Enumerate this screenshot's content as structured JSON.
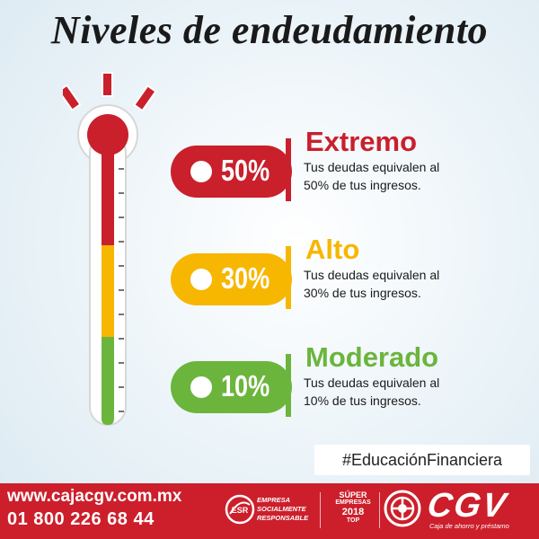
{
  "title": "Niveles de endeudamiento",
  "levels": [
    {
      "name": "Extremo",
      "percent": "50%",
      "desc_line1": "Tus deudas equivalen al",
      "desc_line2": "50% de tus ingresos.",
      "color": "#c9202c"
    },
    {
      "name": "Alto",
      "percent": "30%",
      "desc_line1": "Tus deudas equivalen al",
      "desc_line2": "30% de tus ingresos.",
      "color": "#f7b600"
    },
    {
      "name": "Moderado",
      "percent": "10%",
      "desc_line1": "Tus deudas equivalen al",
      "desc_line2": "10% de tus ingresos.",
      "color": "#6bb53d"
    }
  ],
  "hashtag": "#EducaciónFinanciera",
  "footer": {
    "website": "www.cajacgv.com.mx",
    "phone": "01 800 226 68 44",
    "esr_badge": "ESR",
    "esr_line1": "EMPRESA",
    "esr_line2": "SOCIALMENTE",
    "esr_line3": "RESPONSABLE",
    "super_line1": "SÚPER",
    "super_line2": "EMPRESAS",
    "super_year": "2018",
    "super_line3": "TOP",
    "brand": "CGV",
    "brand_tagline": "Caja de ahorro y préstamo"
  },
  "colors": {
    "red": "#c9202c",
    "yellow": "#f7b600",
    "green": "#6bb53d",
    "footer": "#cc1f2b"
  }
}
